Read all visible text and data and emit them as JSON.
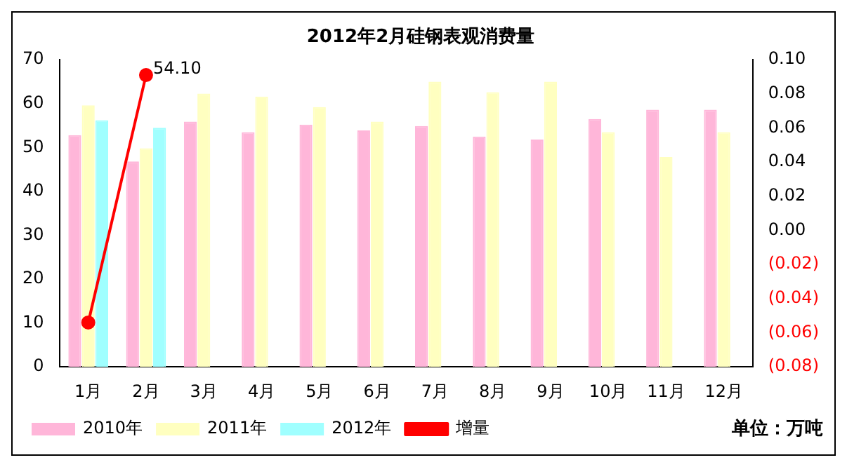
{
  "chart_data": {
    "type": "bar",
    "title": "2012年2月硅钢表观消费量",
    "categories": [
      "1月",
      "2月",
      "3月",
      "4月",
      "5月",
      "6月",
      "7月",
      "8月",
      "9月",
      "10月",
      "11月",
      "12月"
    ],
    "series": [
      {
        "name": "2010年",
        "color": "#ffb6d9",
        "values": [
          52.8,
          46.8,
          55.9,
          53.5,
          55.2,
          53.9,
          54.9,
          52.5,
          51.8,
          56.5,
          58.6,
          58.6
        ]
      },
      {
        "name": "2011年",
        "color": "#ffffc0",
        "values": [
          59.6,
          49.8,
          62.3,
          61.6,
          59.2,
          55.9,
          65.0,
          62.6,
          65.0,
          53.5,
          47.8,
          53.5
        ]
      },
      {
        "name": "2012年",
        "color": "#a0ffff",
        "values": [
          56.2,
          54.5,
          null,
          null,
          null,
          null,
          null,
          null,
          null,
          null,
          null,
          null
        ]
      },
      {
        "name": "增量",
        "type": "line",
        "axis": "y2",
        "color": "#ff0000",
        "marker": "circle",
        "values": [
          -0.054,
          0.091,
          null,
          null,
          null,
          null,
          null,
          null,
          null,
          null,
          null,
          null
        ]
      }
    ],
    "ylim": [
      0,
      70
    ],
    "yticks": [
      0,
      10,
      20,
      30,
      40,
      50,
      60,
      70
    ],
    "y2lim": [
      -0.08,
      0.1
    ],
    "y2ticks": [
      {
        "value": -0.08,
        "label": "(0.08)"
      },
      {
        "value": -0.06,
        "label": "(0.06)"
      },
      {
        "value": -0.04,
        "label": "(0.04)"
      },
      {
        "value": -0.02,
        "label": "(0.02)"
      },
      {
        "value": 0,
        "label": "0.00"
      },
      {
        "value": 0.02,
        "label": "0.02"
      },
      {
        "value": 0.04,
        "label": "0.04"
      },
      {
        "value": 0.06,
        "label": "0.06"
      },
      {
        "value": 0.08,
        "label": "0.08"
      },
      {
        "value": 0.1,
        "label": "0.10"
      }
    ],
    "annotations": [
      "54.10",
      "单位：万吨"
    ],
    "legend": "bottom",
    "grid": false
  }
}
